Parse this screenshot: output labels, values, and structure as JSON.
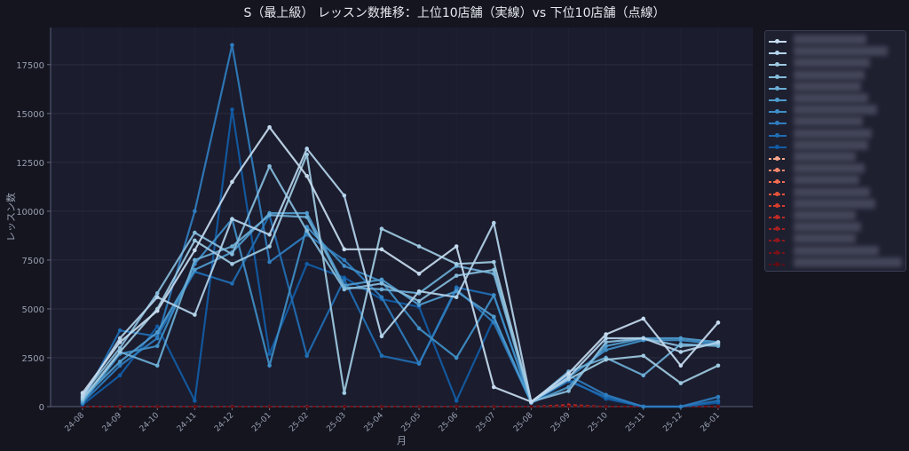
{
  "title": "S（最上級） レッスン数推移：上位10店舗（実線）vs 下位10店舗（点線）",
  "chart_data": {
    "type": "line",
    "title": "S（最上級） レッスン数推移：上位10店舗（実線）vs 下位10店舗（点線）",
    "xlabel": "月",
    "ylabel": "レッスン数",
    "categories": [
      "24-08",
      "24-09",
      "24-10",
      "24-11",
      "24-12",
      "25-01",
      "25-02",
      "25-03",
      "25-04",
      "25-05",
      "25-06",
      "25-07",
      "25-08",
      "25-09",
      "25-10",
      "25-11",
      "25-12",
      "26-01"
    ],
    "ylim": [
      0,
      19400
    ],
    "yticks": [
      0,
      2500,
      5000,
      7500,
      10000,
      12500,
      15000,
      17500
    ],
    "grid": true,
    "legend_position": "outside-right",
    "series": [
      {
        "group": "top",
        "color": "#c6dbef",
        "values": [
          700,
          3300,
          4900,
          8000,
          11500,
          14300,
          11800,
          8050,
          8050,
          6800,
          8200,
          1000,
          250,
          1700,
          3700,
          4500,
          2100,
          4300
        ]
      },
      {
        "group": "top",
        "color": "#b3d3ea",
        "values": [
          500,
          3500,
          5600,
          4700,
          9600,
          8800,
          13200,
          10800,
          3600,
          5900,
          5600,
          9400,
          250,
          1500,
          3500,
          3500,
          2800,
          3300
        ]
      },
      {
        "group": "top",
        "color": "#9ecae1",
        "values": [
          400,
          2800,
          5000,
          8500,
          7300,
          8200,
          12900,
          700,
          9100,
          8200,
          7300,
          7400,
          250,
          1400,
          2400,
          2600,
          1200,
          2100
        ]
      },
      {
        "group": "top",
        "color": "#86bcdc",
        "values": [
          600,
          3000,
          5800,
          8900,
          7800,
          12300,
          9000,
          6000,
          6300,
          5400,
          6700,
          7000,
          250,
          800,
          3300,
          3500,
          3100,
          3200
        ]
      },
      {
        "group": "top",
        "color": "#6baed6",
        "values": [
          300,
          2800,
          2100,
          7500,
          8200,
          9800,
          9700,
          6100,
          6000,
          5800,
          7200,
          6800,
          200,
          1800,
          2500,
          1600,
          3200,
          3100
        ]
      },
      {
        "group": "top",
        "color": "#4f9ccf",
        "values": [
          400,
          2300,
          3800,
          7000,
          7900,
          9900,
          9900,
          6200,
          6500,
          5200,
          5900,
          4600,
          200,
          1000,
          3100,
          3500,
          3500,
          3300
        ]
      },
      {
        "group": "top",
        "color": "#3f8fc8",
        "values": [
          200,
          2700,
          3100,
          7300,
          9600,
          2100,
          9200,
          7200,
          6400,
          4000,
          2500,
          5700,
          200,
          1500,
          2900,
          3400,
          3400,
          3200
        ]
      },
      {
        "group": "top",
        "color": "#2f7dbf",
        "values": [
          200,
          2100,
          3500,
          10000,
          18500,
          7400,
          8800,
          7500,
          5600,
          2200,
          6000,
          4300,
          200,
          1600,
          600,
          0,
          0,
          500
        ]
      },
      {
        "group": "top",
        "color": "#1f6eb4",
        "values": [
          300,
          3900,
          3600,
          6900,
          6300,
          9800,
          2600,
          6500,
          2600,
          2200,
          6100,
          5700,
          200,
          1300,
          500,
          0,
          0,
          300
        ]
      },
      {
        "group": "top",
        "color": "#115ca6",
        "values": [
          100,
          1600,
          4100,
          300,
          15200,
          2700,
          7300,
          6600,
          5500,
          5100,
          300,
          4500,
          200,
          1400,
          400,
          0,
          0,
          200
        ]
      },
      {
        "group": "bottom",
        "color": "#fca98c",
        "values": [
          0,
          0,
          0,
          0,
          0,
          0,
          0,
          0,
          0,
          0,
          0,
          0,
          0,
          0,
          0,
          0,
          0,
          0
        ]
      },
      {
        "group": "bottom",
        "color": "#f8876b",
        "values": [
          0,
          10,
          0,
          0,
          10,
          0,
          0,
          0,
          0,
          0,
          0,
          0,
          0,
          0,
          0,
          0,
          0,
          0
        ]
      },
      {
        "group": "bottom",
        "color": "#f16b50",
        "values": [
          0,
          0,
          0,
          0,
          0,
          0,
          10,
          0,
          0,
          0,
          0,
          0,
          0,
          0,
          0,
          0,
          0,
          0
        ]
      },
      {
        "group": "bottom",
        "color": "#e4533a",
        "values": [
          0,
          0,
          0,
          0,
          0,
          0,
          0,
          0,
          0,
          0,
          0,
          0,
          0,
          60,
          0,
          0,
          0,
          0
        ]
      },
      {
        "group": "bottom",
        "color": "#d43d2c",
        "values": [
          0,
          0,
          0,
          0,
          0,
          0,
          0,
          0,
          0,
          0,
          0,
          0,
          0,
          40,
          0,
          0,
          0,
          0
        ]
      },
      {
        "group": "bottom",
        "color": "#c02c25",
        "values": [
          0,
          0,
          0,
          0,
          0,
          0,
          0,
          0,
          0,
          0,
          0,
          0,
          0,
          100,
          0,
          0,
          0,
          0
        ]
      },
      {
        "group": "bottom",
        "color": "#a8201f",
        "values": [
          0,
          0,
          0,
          0,
          0,
          0,
          0,
          0,
          0,
          0,
          0,
          0,
          0,
          50,
          0,
          0,
          0,
          0
        ]
      },
      {
        "group": "bottom",
        "color": "#90181c",
        "values": [
          0,
          0,
          0,
          0,
          0,
          0,
          0,
          0,
          0,
          0,
          0,
          0,
          0,
          0,
          0,
          0,
          0,
          0
        ]
      },
      {
        "group": "bottom",
        "color": "#771218",
        "values": [
          0,
          0,
          0,
          0,
          0,
          0,
          0,
          0,
          0,
          0,
          0,
          0,
          0,
          0,
          0,
          0,
          0,
          0
        ]
      },
      {
        "group": "bottom",
        "color": "#5f0d14",
        "values": [
          0,
          0,
          0,
          0,
          0,
          0,
          0,
          0,
          0,
          0,
          0,
          0,
          0,
          0,
          0,
          0,
          0,
          0
        ]
      }
    ]
  },
  "legend": {
    "labels_redacted": true,
    "items": [
      "",
      "",
      "",
      "",
      "",
      "",
      "",
      "",
      "",
      "",
      "",
      "",
      "",
      "",
      "",
      "",
      "",
      "",
      "",
      ""
    ]
  },
  "colors": {
    "background": "#14151f",
    "plot_background": "#1b1c2e",
    "grid": "#2a2c40",
    "axis_text": "#9aa0b2"
  }
}
